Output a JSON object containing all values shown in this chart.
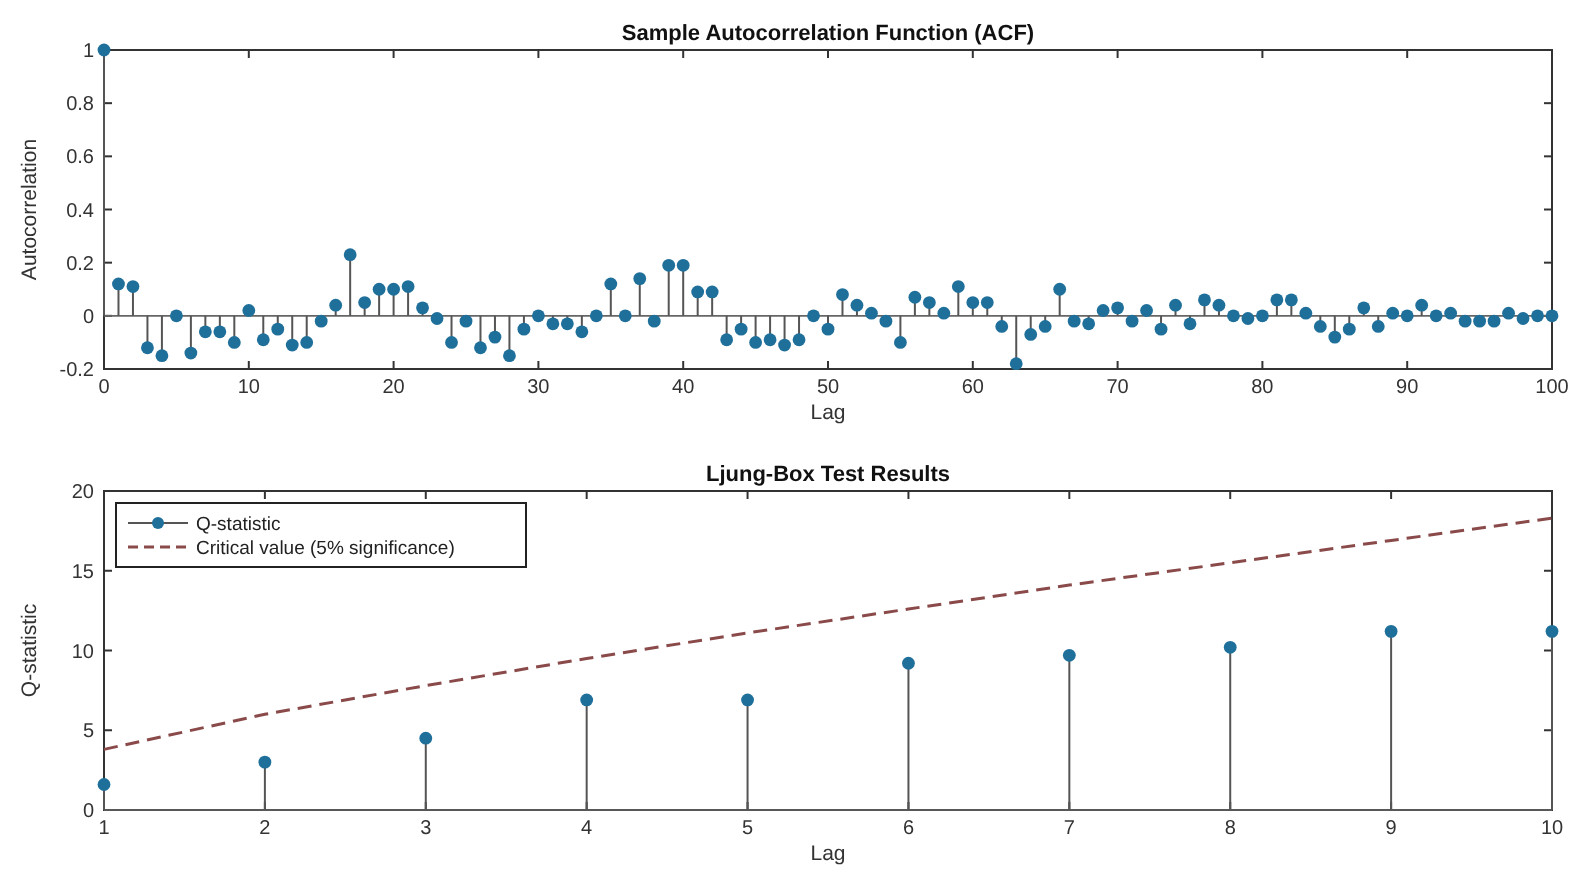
{
  "chart_data": [
    {
      "type": "lollipop",
      "title": "Sample Autocorrelation Function (ACF)",
      "xlabel": "Lag",
      "ylabel": "Autocorrelation",
      "xlim": [
        0,
        100
      ],
      "xticks": [
        0,
        10,
        20,
        30,
        40,
        50,
        60,
        70,
        80,
        90,
        100
      ],
      "ylim": [
        -0.2,
        1
      ],
      "yticks": [
        -0.2,
        0,
        0.2,
        0.4,
        0.6,
        0.8,
        1
      ],
      "x": [
        0,
        1,
        2,
        3,
        4,
        5,
        6,
        7,
        8,
        9,
        10,
        11,
        12,
        13,
        14,
        15,
        16,
        17,
        18,
        19,
        20,
        21,
        22,
        23,
        24,
        25,
        26,
        27,
        28,
        29,
        30,
        31,
        32,
        33,
        34,
        35,
        36,
        37,
        38,
        39,
        40,
        41,
        42,
        43,
        44,
        45,
        46,
        47,
        48,
        49,
        50,
        51,
        52,
        53,
        54,
        55,
        56,
        57,
        58,
        59,
        60,
        61,
        62,
        63,
        64,
        65,
        66,
        67,
        68,
        69,
        70,
        71,
        72,
        73,
        74,
        75,
        76,
        77,
        78,
        79,
        80,
        81,
        82,
        83,
        84,
        85,
        86,
        87,
        88,
        89,
        90,
        91,
        92,
        93,
        94,
        95,
        96,
        97,
        98,
        99,
        100
      ],
      "series": [
        {
          "color": "#1f6f9b",
          "values": [
            1,
            0.12,
            0.11,
            -0.12,
            -0.15,
            0,
            -0.14,
            -0.06,
            -0.06,
            -0.1,
            0.02,
            -0.09,
            -0.05,
            -0.11,
            -0.1,
            -0.02,
            0.04,
            0.23,
            0.05,
            0.1,
            0.1,
            0.11,
            0.03,
            -0.01,
            -0.1,
            -0.02,
            -0.12,
            -0.08,
            -0.15,
            -0.05,
            0,
            -0.03,
            -0.03,
            -0.06,
            0,
            0.12,
            0,
            0.14,
            -0.02,
            0.19,
            0.19,
            0.09,
            0.09,
            -0.09,
            -0.05,
            -0.1,
            -0.09,
            -0.11,
            -0.09,
            0,
            -0.05,
            0.08,
            0.04,
            0.01,
            -0.02,
            -0.1,
            0.07,
            0.05,
            0.01,
            0.11,
            0.05,
            0.05,
            -0.04,
            -0.18,
            -0.07,
            -0.04,
            0.1,
            -0.02,
            -0.03,
            0.02,
            0.03,
            -0.02,
            0.02,
            -0.05,
            0.04,
            -0.03,
            0.06,
            0.04,
            0,
            -0.01,
            0,
            0.06,
            0.06,
            0.01,
            -0.04,
            -0.08,
            -0.05,
            0.03,
            -0.04,
            0.01,
            0,
            0.04,
            0,
            0.01,
            -0.02,
            -0.02,
            -0.02,
            0.01,
            -0.01,
            0,
            0
          ]
        }
      ]
    },
    {
      "type": "lollipop",
      "title": "Ljung-Box Test Results",
      "xlabel": "Lag",
      "ylabel": "Q-statistic",
      "xlim": [
        1,
        10
      ],
      "xticks": [
        1,
        2,
        3,
        4,
        5,
        6,
        7,
        8,
        9,
        10
      ],
      "ylim": [
        0,
        20
      ],
      "yticks": [
        0,
        5,
        10,
        15,
        20
      ],
      "legend": "top left",
      "x": [
        1,
        2,
        3,
        4,
        5,
        6,
        7,
        8,
        9,
        10
      ],
      "series": [
        {
          "name": "Q-statistic",
          "type": "lollipop",
          "color": "#1f6f9b",
          "values": [
            1.6,
            3.0,
            4.5,
            6.9,
            6.9,
            9.2,
            9.7,
            10.2,
            11.2,
            11.2
          ]
        },
        {
          "name": "Critical value (5% significance)",
          "type": "line",
          "line_style": "dashed",
          "color": "#8a4a4a",
          "values": [
            3.8,
            6.0,
            7.8,
            9.5,
            11.1,
            12.6,
            14.1,
            15.5,
            16.9,
            18.3
          ]
        }
      ]
    }
  ]
}
